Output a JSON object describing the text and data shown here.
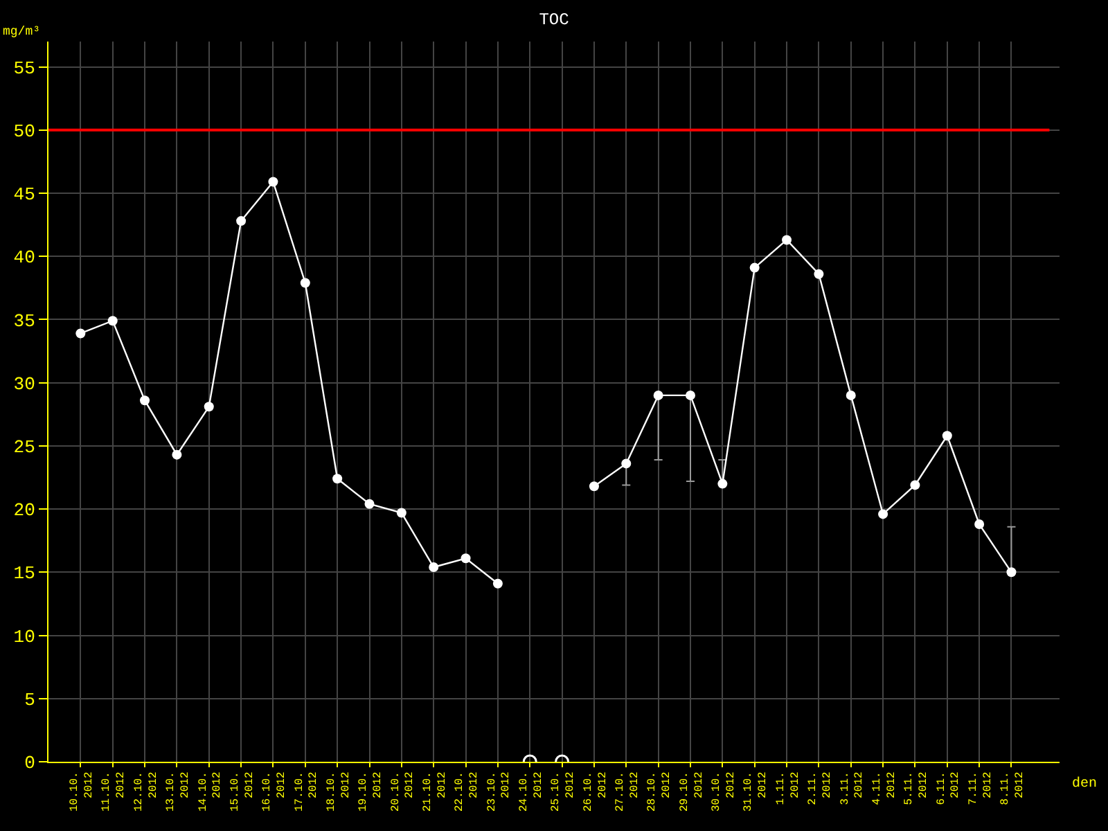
{
  "chart_data": {
    "type": "line",
    "title": "TOC",
    "xlabel": "den",
    "ylabel": "mg/m³",
    "categories": [
      "10.10.\n2012",
      "11.10.\n2012",
      "12.10.\n2012",
      "13.10.\n2012",
      "14.10.\n2012",
      "15.10.\n2012",
      "16.10.\n2012",
      "17.10.\n2012",
      "18.10.\n2012",
      "19.10.\n2012",
      "20.10.\n2012",
      "21.10.\n2012",
      "22.10.\n2012",
      "23.10.\n2012",
      "24.10.\n2012",
      "25.10.\n2012",
      "26.10.\n2012",
      "27.10.\n2012",
      "28.10.\n2012",
      "29.10.\n2012",
      "30.10.\n2012",
      "31.10.\n2012",
      "1.11.\n2012",
      "2.11.\n2012",
      "3.11.\n2012",
      "4.11.\n2012",
      "5.11.\n2012",
      "6.11.\n2012",
      "7.11.\n2012",
      "8.11.\n2012"
    ],
    "series": [
      {
        "color": "#ffffff",
        "values": [
          33.9,
          34.9,
          28.6,
          24.3,
          28.1,
          42.8,
          45.9,
          37.9,
          22.4,
          20.4,
          19.7,
          15.4,
          16.1,
          14.1,
          null,
          null,
          21.8,
          23.6,
          29.0,
          29.0,
          22.0,
          39.1,
          41.3,
          38.6,
          29.0,
          19.6,
          21.9,
          25.8,
          18.8,
          15.0
        ],
        "errors": [
          null,
          null,
          null,
          null,
          null,
          null,
          null,
          null,
          null,
          null,
          null,
          null,
          null,
          null,
          null,
          null,
          null,
          [
            21.9,
            23.6
          ],
          [
            23.9,
            29.0
          ],
          [
            22.2,
            29.0
          ],
          [
            22.0,
            23.9
          ],
          null,
          null,
          null,
          null,
          null,
          null,
          null,
          null,
          [
            15.0,
            18.6
          ]
        ]
      },
      {
        "type": "scatter",
        "color": "#ffffff",
        "values": [
          null,
          null,
          null,
          null,
          null,
          null,
          null,
          null,
          null,
          null,
          null,
          null,
          null,
          null,
          0,
          0,
          null,
          null,
          null,
          null,
          null,
          null,
          null,
          null,
          null,
          null,
          null,
          null,
          null,
          null
        ]
      }
    ],
    "ylim": [
      0,
      57
    ],
    "yticks": [
      0,
      5,
      10,
      15,
      20,
      25,
      30,
      35,
      40,
      45,
      50,
      55
    ],
    "ref_lines": [
      {
        "axis": "y",
        "value": 50,
        "color": "#ff0000"
      }
    ],
    "grid": true,
    "marker": "circle"
  }
}
